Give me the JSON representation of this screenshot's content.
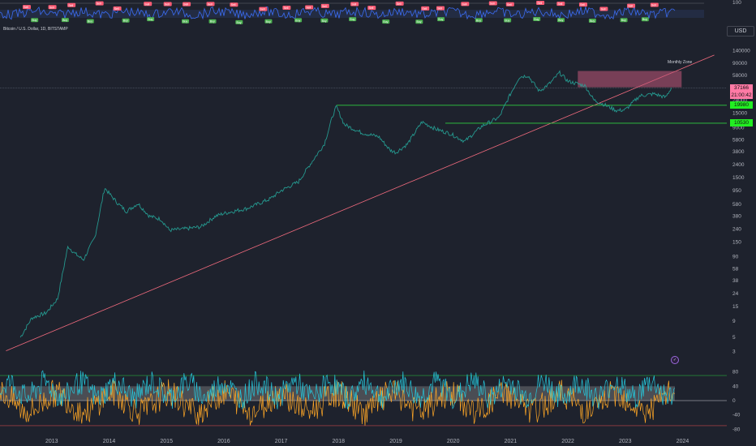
{
  "header": {
    "symbol": "Bitcoin / U.S. Dollar, 1D, BITSTAMP",
    "currency": "USD"
  },
  "colors": {
    "background": "#1e222d",
    "up_candle": "#26a69a",
    "down_candle": "#ef5350",
    "trendline": "#f06a7d",
    "support_line": "#2ecc40",
    "zone_fill": "#c2587a",
    "top_osc_line": "#3b6cf2",
    "sell_label": "#ff5c75",
    "buy_label": "#4caf50",
    "osc_cyan": "#26c6da",
    "osc_orange": "#ffa726"
  },
  "chart_data": [
    {
      "type": "line",
      "series_role": "price",
      "scale": "log",
      "y_ticks": [
        140000,
        90000,
        58000,
        37000,
        24000,
        15000,
        9000,
        5800,
        3800,
        2400,
        1500,
        950,
        580,
        380,
        240,
        150,
        90,
        58,
        38,
        24,
        15,
        9,
        5,
        3
      ],
      "ylim": [
        2.5,
        160000
      ],
      "x_ticks": [
        "2013",
        "2014",
        "2015",
        "2016",
        "2017",
        "2018",
        "2019",
        "2020",
        "2021",
        "2022",
        "2023",
        "2024"
      ],
      "x": [
        2012.45,
        2012.65,
        2012.9,
        2013.1,
        2013.28,
        2013.4,
        2013.55,
        2013.75,
        2013.92,
        2014.0,
        2014.15,
        2014.3,
        2014.5,
        2014.7,
        2014.9,
        2015.05,
        2015.3,
        2015.6,
        2015.85,
        2016.0,
        2016.4,
        2016.8,
        2017.0,
        2017.3,
        2017.5,
        2017.75,
        2017.9,
        2017.96,
        2018.1,
        2018.4,
        2018.7,
        2018.9,
        2019.0,
        2019.2,
        2019.45,
        2019.7,
        2019.95,
        2020.2,
        2020.5,
        2020.8,
        2020.98,
        2021.15,
        2021.3,
        2021.5,
        2021.7,
        2021.85,
        2022.0,
        2022.3,
        2022.45,
        2022.6,
        2022.85,
        2023.0,
        2023.25,
        2023.5,
        2023.7,
        2023.8
      ],
      "values": [
        5,
        10,
        12,
        20,
        130,
        100,
        80,
        180,
        1050,
        850,
        600,
        450,
        600,
        380,
        340,
        230,
        240,
        260,
        380,
        420,
        500,
        700,
        950,
        1300,
        2400,
        5000,
        14000,
        19000,
        10000,
        7500,
        6500,
        4000,
        3700,
        5000,
        11000,
        8500,
        7200,
        5500,
        9500,
        13000,
        28000,
        55000,
        58000,
        33000,
        45000,
        64000,
        47000,
        40000,
        24000,
        21000,
        16500,
        17000,
        28000,
        30000,
        26500,
        37166
      ],
      "series": [
        {
          "name": "",
          "color": "#26a69a"
        }
      ],
      "price_labels": [
        {
          "value": 37166,
          "text": "37166",
          "sub": "21:00:42",
          "color": "#ff7aa5"
        },
        {
          "value": 19980,
          "text": "19980",
          "color": "#22ee22"
        },
        {
          "value": 10530,
          "text": "10530",
          "color": "#22ee22"
        }
      ],
      "horizontal_levels": [
        {
          "value": 19980,
          "from_x": 2017.96,
          "to_x": 2024.22
        },
        {
          "value": 10530,
          "from_x": 2019.86,
          "to_x": 2024.22
        }
      ],
      "zone": {
        "label": "Monthly Zone",
        "from_x": 2022.17,
        "to_x": 2023.98,
        "low": 38000,
        "high": 68000
      },
      "trendline": {
        "from": [
          2012.2,
          3.1
        ],
        "to": [
          2024.55,
          120000
        ]
      }
    },
    {
      "type": "line",
      "series_role": "top_oscillator",
      "y_ticks": [
        100
      ],
      "ylim": [
        0,
        110
      ],
      "sell_labels": 28,
      "buy_labels": 22,
      "label_texts": {
        "sell": "Sell",
        "buy": "Buy"
      }
    },
    {
      "type": "area",
      "series_role": "bottom_oscillator",
      "y_ticks": [
        80,
        40,
        0,
        -40,
        -80
      ],
      "ylim": [
        -95,
        95
      ],
      "levels": [
        70,
        0,
        -70
      ],
      "series": [
        {
          "name": "",
          "color": "#26c6da"
        },
        {
          "name": "",
          "color": "#ffa726"
        }
      ]
    }
  ]
}
